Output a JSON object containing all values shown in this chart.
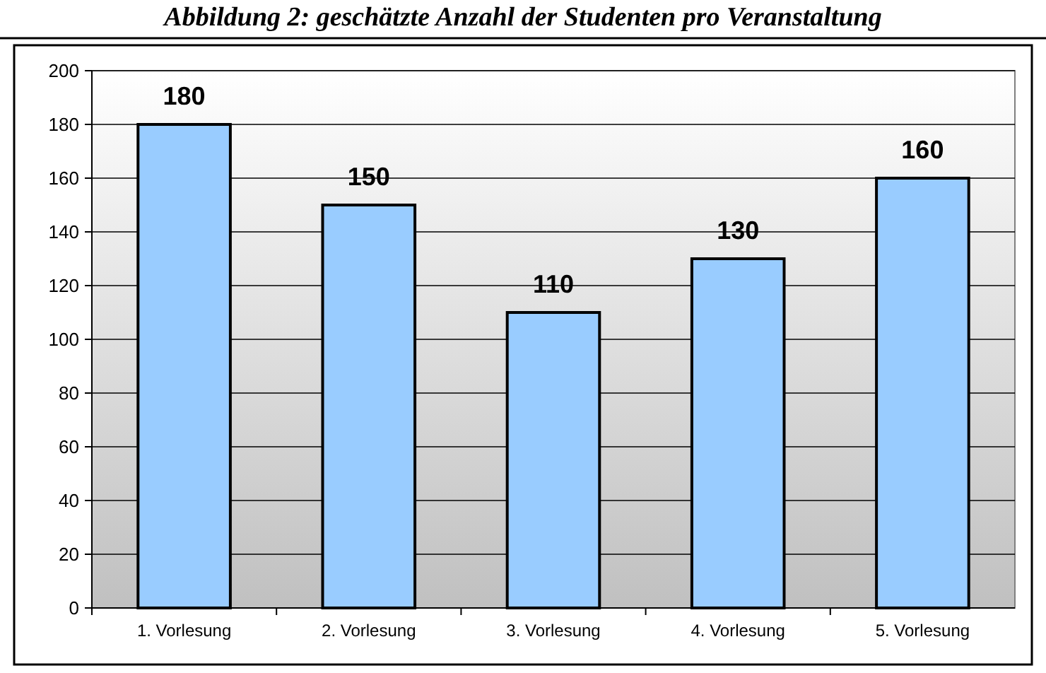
{
  "chart_data": {
    "type": "bar",
    "title": "Abbildung 2: geschätzte Anzahl der Studenten pro Veranstaltung",
    "categories": [
      "1. Vorlesung",
      "2. Vorlesung",
      "3. Vorlesung",
      "4. Vorlesung",
      "5. Vorlesung"
    ],
    "values": [
      180,
      150,
      110,
      130,
      160
    ],
    "color": "#99ccff",
    "ylim": [
      0,
      200
    ],
    "yticks": [
      0,
      20,
      40,
      60,
      80,
      100,
      120,
      140,
      160,
      180,
      200
    ],
    "grid": "y",
    "data_labels": true
  }
}
